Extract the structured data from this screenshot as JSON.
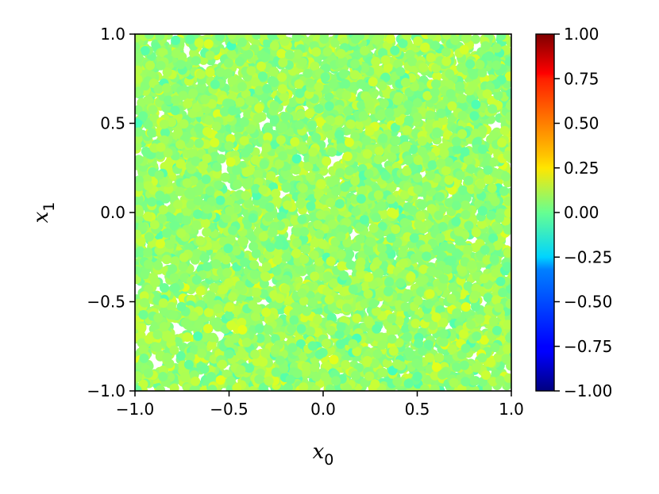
{
  "chart_data": {
    "type": "scatter",
    "title": "",
    "xlabel": "x",
    "xlabel_subscript": "0",
    "ylabel": "x",
    "ylabel_subscript": "1",
    "xlim": [
      -1.0,
      1.0
    ],
    "ylim": [
      -1.0,
      1.0
    ],
    "xticks": [
      -1.0,
      -0.5,
      0.0,
      0.5,
      1.0
    ],
    "xtick_labels": [
      "−1.0",
      "−0.5",
      "0.0",
      "0.5",
      "1.0"
    ],
    "yticks": [
      -1.0,
      -0.5,
      0.0,
      0.5,
      1.0
    ],
    "ytick_labels": [
      "−1.0",
      "−0.5",
      "0.0",
      "0.5",
      "1.0"
    ],
    "grid": false,
    "marker_description": "dense uniform cloud of circular points covering the full square domain, colored by value",
    "value_range": [
      -0.15,
      0.2
    ],
    "value_typical": 0.05,
    "colorbar": {
      "colormap": "jet",
      "vmin": -1.0,
      "vmax": 1.0,
      "ticks": [
        1.0,
        0.75,
        0.5,
        0.25,
        0.0,
        -0.25,
        -0.5,
        -0.75,
        -1.0
      ],
      "tick_labels": [
        "1.00",
        "0.75",
        "0.50",
        "0.25",
        "0.00",
        "−0.25",
        "−0.50",
        "−0.75",
        "−1.00"
      ]
    }
  }
}
